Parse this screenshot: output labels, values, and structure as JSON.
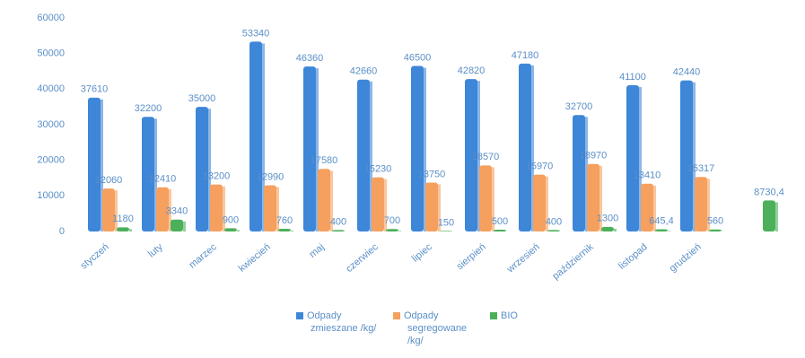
{
  "chart_data": {
    "type": "bar",
    "categories": [
      "styczeń",
      "luty",
      "marzec",
      "kwiecień",
      "maj",
      "czerwiec",
      "lipiec",
      "sierpień",
      "wrzesień",
      "październik",
      "listopad",
      "grudzień",
      null
    ],
    "series": [
      {
        "name": "Odpady zmieszane /kg/",
        "color": "#3d86d8",
        "values": [
          37610,
          32200,
          35000,
          53340,
          46360,
          42660,
          46500,
          42820,
          47180,
          32700,
          41100,
          42440,
          null
        ]
      },
      {
        "name": "Odpady segregowane /kg/",
        "color": "#f5a05e",
        "values": [
          12060,
          12410,
          13200,
          12990,
          17580,
          15230,
          13750,
          18570,
          15970,
          18970,
          13410,
          15317,
          null
        ]
      },
      {
        "name": "BIO",
        "color": "#4cb05a",
        "values": [
          1180,
          3340,
          900,
          760,
          400,
          700,
          150,
          500,
          400,
          1300,
          645.4,
          560,
          8730.4
        ],
        "value_labels": [
          "1180",
          "3340",
          "900",
          "760",
          "400",
          "700",
          "150",
          "500",
          "400",
          "1300",
          "645,4",
          "560",
          "8730,4"
        ]
      }
    ],
    "ylim": [
      0,
      60000
    ],
    "yticks": [
      0,
      10000,
      20000,
      30000,
      40000,
      50000,
      60000
    ],
    "grid": false
  }
}
